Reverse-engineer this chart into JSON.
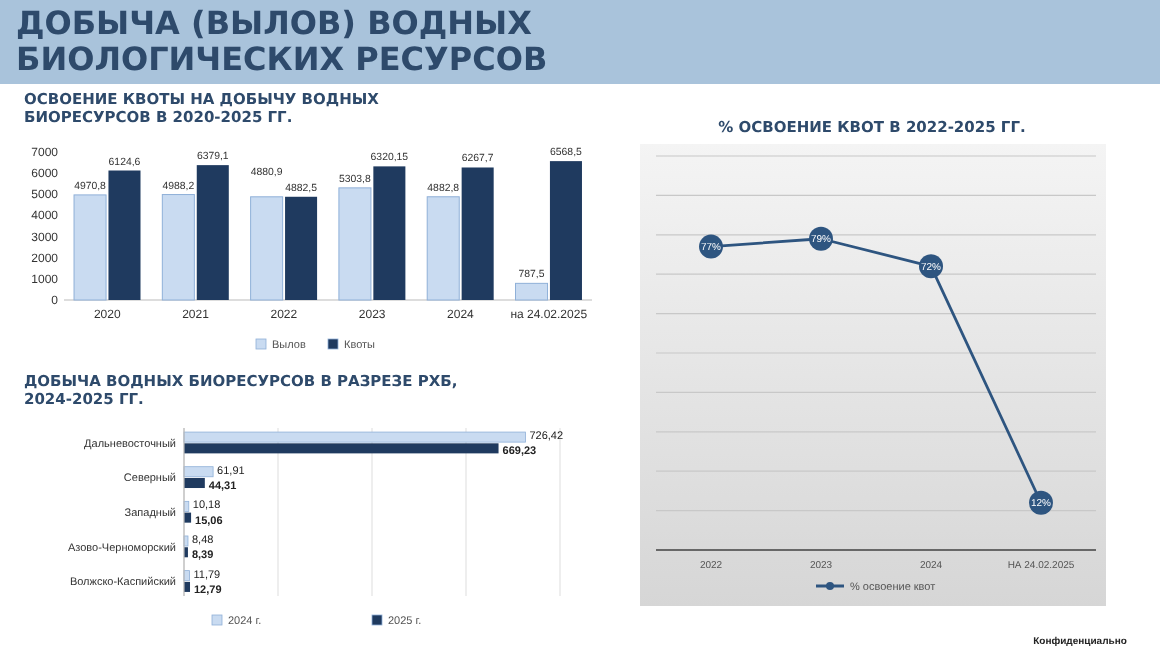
{
  "chart_data": [
    {
      "type": "other",
      "title": "ДОБЫЧА (ВЫЛОВ) ВОДНЫХ БИОЛОГИЧЕСКИХ РЕСУРСОВ",
      "annotations": [
        "Конфиденциально"
      ]
    },
    {
      "type": "bar",
      "title": "ОСВОЕНИЕ КВОТЫ НА ДОБЫЧУ ВОДНЫХ БИОРЕСУРСОВ В 2020-2025 ГГ.",
      "categories": [
        "2020",
        "2021",
        "2022",
        "2023",
        "2024",
        "на 24.02.2025"
      ],
      "series": [
        {
          "name": "Вылов",
          "color": "#c9dbf1",
          "values": [
            4970.8,
            4988.2,
            4880.9,
            5303.8,
            4882.8,
            787.5
          ],
          "value_labels": [
            "4970,8",
            "4988,2",
            "4880,9",
            "5303,8",
            "4882,8",
            "787,5"
          ]
        },
        {
          "name": "Квоты",
          "color": "#1f3a5f",
          "values": [
            6124.6,
            6379.1,
            4882.5,
            6320.15,
            6267.7,
            6568.5
          ],
          "value_labels": [
            "6124,6",
            "6379,1",
            "4882,5",
            "6320,15",
            "6267,7",
            "6568,5"
          ]
        }
      ],
      "ylim": [
        0,
        7000
      ],
      "yticks": [
        0,
        1000,
        2000,
        3000,
        4000,
        5000,
        6000,
        7000
      ],
      "legend": "bottom"
    },
    {
      "type": "bar",
      "orientation": "horizontal",
      "title": "ДОБЫЧА ВОДНЫХ БИОРЕСУРСОВ В РАЗРЕЗЕ РХБ, 2024-2025 ГГ.",
      "categories": [
        "Дальневосточный",
        "Северный",
        "Западный",
        "Азово-Черноморский",
        "Волжско-Каспийский"
      ],
      "series": [
        {
          "name": "2024 г.",
          "color": "#c9dbf1",
          "values": [
            726.42,
            61.91,
            10.18,
            8.48,
            11.79
          ],
          "value_labels": [
            "726,42",
            "61,91",
            "10,18",
            "8,48",
            "11,79"
          ]
        },
        {
          "name": "2025 г.",
          "color": "#1f3a5f",
          "values": [
            669.23,
            44.31,
            15.06,
            8.39,
            12.79
          ],
          "value_labels": [
            "669,23",
            "44,31",
            "15,06",
            "8,39",
            "12,79"
          ]
        }
      ],
      "xlim": [
        0,
        800
      ],
      "xticks": [
        {
          "value": 0,
          "label": null
        },
        {
          "value": 200,
          "label": null
        },
        {
          "value": 400,
          "label": null
        },
        {
          "value": 600,
          "label": null
        },
        {
          "value": 800,
          "label": null
        }
      ],
      "grid": "x",
      "tick_labels": "y",
      "legend": "bottom"
    },
    {
      "type": "line",
      "title": "% ОСВОЕНИЕ КВОТ В 2022-2025 ГГ.",
      "categories": [
        "2022",
        "2023",
        "2024",
        "НА 24.02.2025"
      ],
      "series": [
        {
          "name": "% освоение квот",
          "color": "#2e5580",
          "values": [
            77,
            79,
            72,
            12
          ],
          "value_labels": [
            "77%",
            "79%",
            "72%",
            "12%"
          ]
        }
      ],
      "ylim": [
        0,
        100
      ],
      "yticks": [
        {
          "value": 0,
          "label": null
        },
        {
          "value": 10,
          "label": null
        },
        {
          "value": 20,
          "label": null
        },
        {
          "value": 30,
          "label": null
        },
        {
          "value": 40,
          "label": null
        },
        {
          "value": 50,
          "label": null
        },
        {
          "value": 60,
          "label": null
        },
        {
          "value": 70,
          "label": null
        },
        {
          "value": 80,
          "label": null
        },
        {
          "value": 90,
          "label": null
        },
        {
          "value": 100,
          "label": null
        }
      ],
      "grid": "y",
      "tick_labels": "x",
      "legend": "bottom",
      "marker": "circle",
      "line_style": "solid"
    }
  ]
}
